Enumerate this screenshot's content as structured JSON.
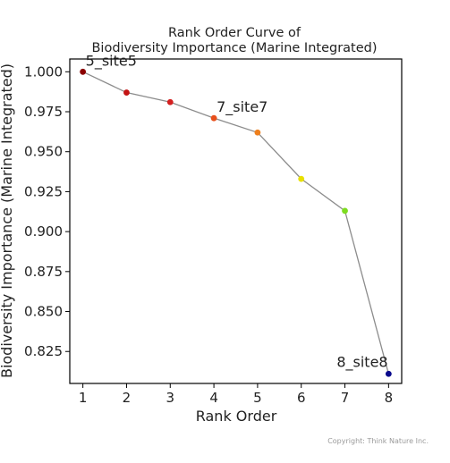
{
  "chart_data": {
    "type": "line",
    "title_lines": [
      "Rank Order Curve of",
      "Biodiversity Importance (Marine Integrated)"
    ],
    "xlabel": "Rank Order",
    "ylabel": "Biodiversity Importance (Marine Integrated)",
    "xlim": [
      0.7,
      8.3
    ],
    "ylim": [
      0.805,
      1.008
    ],
    "x_ticks": [
      1,
      2,
      3,
      4,
      5,
      6,
      7,
      8
    ],
    "y_ticks": [
      0.825,
      0.85,
      0.875,
      0.9,
      0.925,
      0.95,
      0.975,
      1.0
    ],
    "y_tick_labels": [
      "0.825",
      "0.850",
      "0.875",
      "0.900",
      "0.925",
      "0.950",
      "0.975",
      "1.000"
    ],
    "grid": false,
    "line_color": "#8c8c8c",
    "points": [
      {
        "x": 1,
        "y": 1.0,
        "color": "#8b0000",
        "label": "5_site5"
      },
      {
        "x": 2,
        "y": 0.987,
        "color": "#c41414",
        "label": ""
      },
      {
        "x": 3,
        "y": 0.981,
        "color": "#d42020",
        "label": ""
      },
      {
        "x": 4,
        "y": 0.971,
        "color": "#e8501c",
        "label": "7_site7"
      },
      {
        "x": 5,
        "y": 0.962,
        "color": "#ee7f1c",
        "label": ""
      },
      {
        "x": 6,
        "y": 0.933,
        "color": "#e8e000",
        "label": ""
      },
      {
        "x": 7,
        "y": 0.913,
        "color": "#7ddc1f",
        "label": ""
      },
      {
        "x": 8,
        "y": 0.811,
        "color": "#0a0a8c",
        "label": "8_site8"
      }
    ]
  },
  "copyright": "Copyright: Think Nature Inc."
}
